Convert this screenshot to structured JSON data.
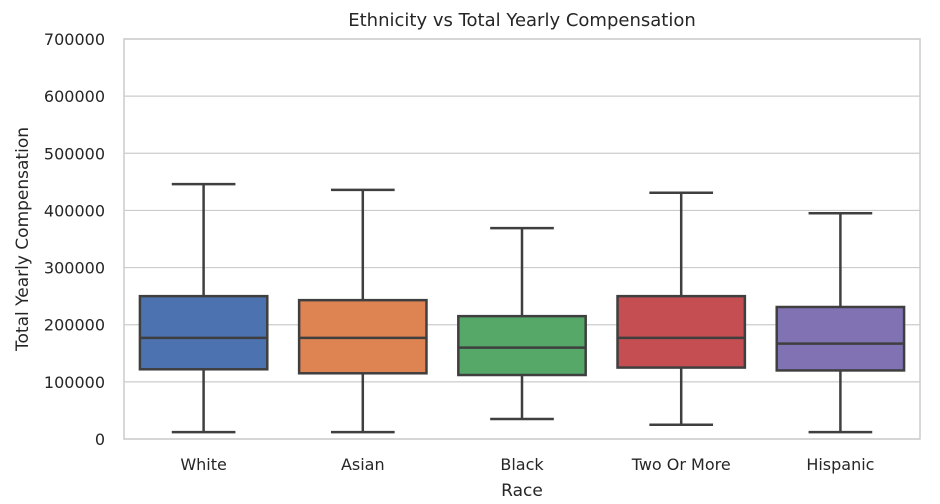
{
  "chart_data": {
    "type": "boxplot",
    "title": "Ethnicity vs Total Yearly Compensation",
    "xlabel": "Race",
    "ylabel": "Total Yearly Compensation",
    "ylim": [
      0,
      700000
    ],
    "yticks": [
      0,
      100000,
      200000,
      300000,
      400000,
      500000,
      600000,
      700000
    ],
    "grid": true,
    "categories": [
      "White",
      "Asian",
      "Black",
      "Two Or More",
      "Hispanic"
    ],
    "colors": [
      "#4c72b0",
      "#dd8452",
      "#55a868",
      "#c44e52",
      "#8172b3"
    ],
    "boxes": [
      {
        "category": "White",
        "whisker_low": 12000,
        "q1": 122000,
        "median": 177000,
        "q3": 250000,
        "whisker_high": 446000
      },
      {
        "category": "Asian",
        "whisker_low": 12000,
        "q1": 115000,
        "median": 177000,
        "q3": 243000,
        "whisker_high": 436000
      },
      {
        "category": "Black",
        "whisker_low": 35000,
        "q1": 112000,
        "median": 160000,
        "q3": 215000,
        "whisker_high": 369000
      },
      {
        "category": "Two Or More",
        "whisker_low": 25000,
        "q1": 125000,
        "median": 177000,
        "q3": 250000,
        "whisker_high": 431000
      },
      {
        "category": "Hispanic",
        "whisker_low": 12000,
        "q1": 120000,
        "median": 167000,
        "q3": 231000,
        "whisker_high": 395000
      }
    ]
  }
}
